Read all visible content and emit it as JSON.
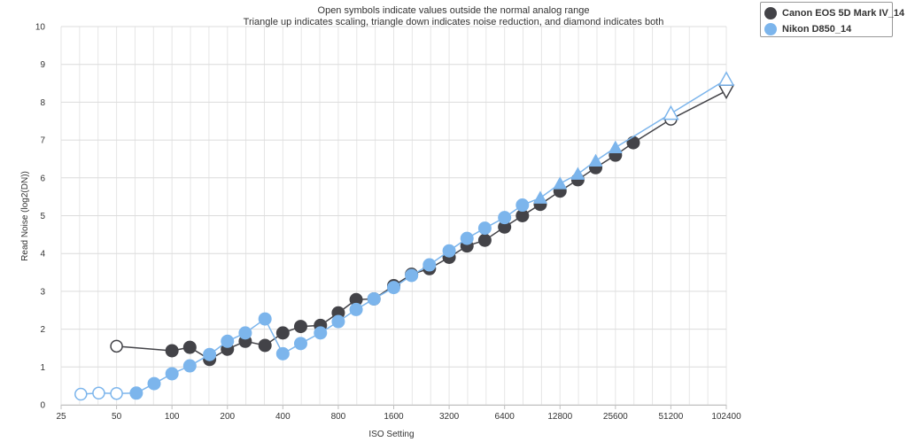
{
  "chart_data": {
    "type": "line",
    "title_lines": [
      "Open symbols indicate values outside the normal analog range",
      "Triangle up indicates scaling, triangle down indicates noise reduction, and diamond indicates both"
    ],
    "xlabel": "ISO Setting",
    "ylabel": "Read Noise (log2(DN))",
    "x_scale": "log2",
    "xlim": [
      25,
      102400
    ],
    "ylim": [
      0,
      10
    ],
    "x_ticks": [
      25,
      50,
      100,
      200,
      400,
      800,
      1600,
      3200,
      6400,
      12800,
      25600,
      51200,
      102400
    ],
    "y_ticks": [
      0,
      1,
      2,
      3,
      4,
      5,
      6,
      7,
      8,
      9,
      10
    ],
    "grid": true,
    "legend_position": "top-right",
    "series": [
      {
        "name": "Canon EOS 5D Mark IV_14",
        "color": "#434348",
        "points": [
          {
            "x": 50,
            "y": 1.55,
            "marker": "open-circle"
          },
          {
            "x": 100,
            "y": 1.43,
            "marker": "circle"
          },
          {
            "x": 125,
            "y": 1.52,
            "marker": "circle"
          },
          {
            "x": 160,
            "y": 1.2,
            "marker": "circle"
          },
          {
            "x": 200,
            "y": 1.47,
            "marker": "circle"
          },
          {
            "x": 250,
            "y": 1.68,
            "marker": "circle"
          },
          {
            "x": 320,
            "y": 1.57,
            "marker": "circle"
          },
          {
            "x": 400,
            "y": 1.9,
            "marker": "circle"
          },
          {
            "x": 500,
            "y": 2.07,
            "marker": "circle"
          },
          {
            "x": 640,
            "y": 2.1,
            "marker": "circle"
          },
          {
            "x": 800,
            "y": 2.43,
            "marker": "circle"
          },
          {
            "x": 1000,
            "y": 2.78,
            "marker": "circle"
          },
          {
            "x": 1250,
            "y": 2.8,
            "marker": "circle"
          },
          {
            "x": 1600,
            "y": 3.15,
            "marker": "circle"
          },
          {
            "x": 2000,
            "y": 3.45,
            "marker": "circle"
          },
          {
            "x": 2500,
            "y": 3.6,
            "marker": "circle"
          },
          {
            "x": 3200,
            "y": 3.9,
            "marker": "circle"
          },
          {
            "x": 4000,
            "y": 4.2,
            "marker": "circle"
          },
          {
            "x": 5000,
            "y": 4.35,
            "marker": "circle"
          },
          {
            "x": 6400,
            "y": 4.7,
            "marker": "circle"
          },
          {
            "x": 8000,
            "y": 5.0,
            "marker": "circle"
          },
          {
            "x": 10000,
            "y": 5.3,
            "marker": "circle"
          },
          {
            "x": 12800,
            "y": 5.65,
            "marker": "circle"
          },
          {
            "x": 16000,
            "y": 5.95,
            "marker": "circle"
          },
          {
            "x": 20000,
            "y": 6.27,
            "marker": "circle"
          },
          {
            "x": 25600,
            "y": 6.6,
            "marker": "circle"
          },
          {
            "x": 32000,
            "y": 6.93,
            "marker": "circle"
          },
          {
            "x": 51200,
            "y": 7.55,
            "marker": "open-circle"
          },
          {
            "x": 102400,
            "y": 8.3,
            "marker": "open-triangle-down"
          }
        ]
      },
      {
        "name": "Nikon D850_14",
        "color": "#7cb5ec",
        "points": [
          {
            "x": 32,
            "y": 0.28,
            "marker": "open-circle"
          },
          {
            "x": 40,
            "y": 0.31,
            "marker": "open-circle"
          },
          {
            "x": 50,
            "y": 0.3,
            "marker": "open-circle"
          },
          {
            "x": 64,
            "y": 0.31,
            "marker": "circle"
          },
          {
            "x": 80,
            "y": 0.56,
            "marker": "circle"
          },
          {
            "x": 100,
            "y": 0.82,
            "marker": "circle"
          },
          {
            "x": 125,
            "y": 1.03,
            "marker": "circle"
          },
          {
            "x": 160,
            "y": 1.33,
            "marker": "circle"
          },
          {
            "x": 200,
            "y": 1.68,
            "marker": "circle"
          },
          {
            "x": 250,
            "y": 1.9,
            "marker": "circle"
          },
          {
            "x": 320,
            "y": 2.27,
            "marker": "circle"
          },
          {
            "x": 400,
            "y": 1.35,
            "marker": "circle"
          },
          {
            "x": 500,
            "y": 1.62,
            "marker": "circle"
          },
          {
            "x": 640,
            "y": 1.9,
            "marker": "circle"
          },
          {
            "x": 800,
            "y": 2.2,
            "marker": "circle"
          },
          {
            "x": 1000,
            "y": 2.52,
            "marker": "circle"
          },
          {
            "x": 1250,
            "y": 2.8,
            "marker": "circle"
          },
          {
            "x": 1600,
            "y": 3.1,
            "marker": "circle"
          },
          {
            "x": 2000,
            "y": 3.42,
            "marker": "circle"
          },
          {
            "x": 2500,
            "y": 3.7,
            "marker": "circle"
          },
          {
            "x": 3200,
            "y": 4.07,
            "marker": "circle"
          },
          {
            "x": 4000,
            "y": 4.4,
            "marker": "circle"
          },
          {
            "x": 5000,
            "y": 4.67,
            "marker": "circle"
          },
          {
            "x": 6400,
            "y": 4.95,
            "marker": "circle"
          },
          {
            "x": 8000,
            "y": 5.28,
            "marker": "circle"
          },
          {
            "x": 10000,
            "y": 5.47,
            "marker": "triangle-up"
          },
          {
            "x": 12800,
            "y": 5.85,
            "marker": "triangle-up"
          },
          {
            "x": 16000,
            "y": 6.1,
            "marker": "triangle-up"
          },
          {
            "x": 20000,
            "y": 6.45,
            "marker": "triangle-up"
          },
          {
            "x": 25600,
            "y": 6.8,
            "marker": "triangle-up"
          },
          {
            "x": 51200,
            "y": 7.7,
            "marker": "open-triangle-up"
          },
          {
            "x": 102400,
            "y": 8.6,
            "marker": "open-triangle-up"
          }
        ]
      }
    ]
  }
}
